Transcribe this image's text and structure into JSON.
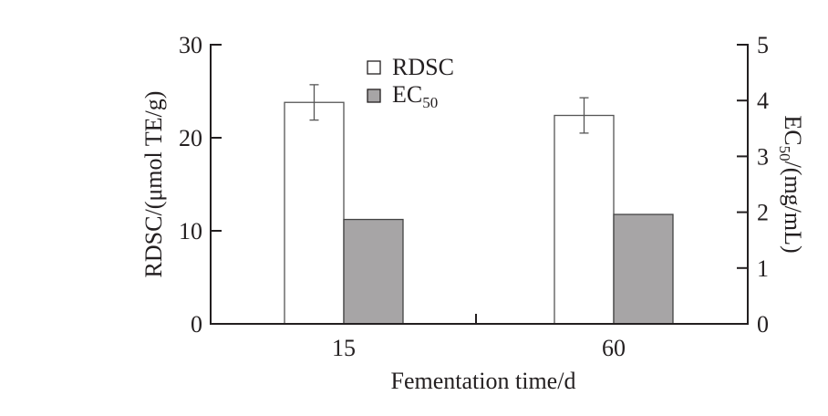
{
  "chart_data": {
    "type": "bar",
    "title": "",
    "xlabel": "Fementation time/d",
    "ylabel": "RDSC/(μmol TE/g)",
    "y2label_main": "EC",
    "y2label_sub": "50",
    "y2label_rest": "/(mg/mL)",
    "categories": [
      "15",
      "60"
    ],
    "ylim": [
      0,
      30
    ],
    "y2lim": [
      0,
      5
    ],
    "yticks": [
      "0",
      "10",
      "20",
      "30"
    ],
    "y2ticks": [
      "0",
      "1",
      "2",
      "3",
      "4",
      "5"
    ],
    "series": [
      {
        "name": "RDSC",
        "axis": "left",
        "values": [
          23.8,
          22.4
        ],
        "errors": [
          1.9,
          1.9
        ],
        "color": "#ffffff"
      },
      {
        "name": "EC",
        "name_sub": "50",
        "axis": "right",
        "values": [
          1.87,
          1.96
        ],
        "color": "#a7a5a6"
      }
    ],
    "legend": {
      "placement": "top-center"
    },
    "grid": false
  }
}
